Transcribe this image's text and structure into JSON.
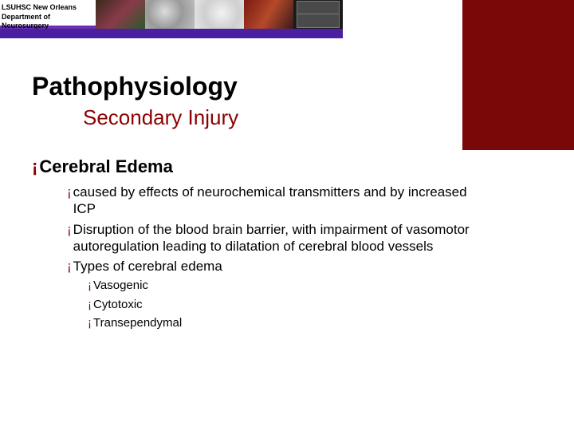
{
  "header": {
    "org_line1": "LSUHSC New Orleans",
    "org_line2": "Department of Neurosurgery",
    "purple_bar_color": "#4a1fa0",
    "maroon_box_color": "#7a0808"
  },
  "title": "Pathophysiology",
  "subtitle": "Secondary Injury",
  "bullet_glyph": "¡",
  "bullet_color": "#8b0000",
  "subtitle_color": "#8b0000",
  "fonts": {
    "title_size_pt": 32,
    "subtitle_size_pt": 26,
    "lvl1_size_pt": 22,
    "lvl2_size_pt": 17,
    "lvl3_size_pt": 15,
    "family": "Arial"
  },
  "content": {
    "heading": "Cerebral Edema",
    "points": [
      "caused by effects of neurochemical transmitters and by increased ICP",
      "Disruption of the blood brain barrier, with impairment of vasomotor autoregulation leading to dilatation of cerebral blood vessels",
      "Types of cerebral edema"
    ],
    "subpoints": [
      "Vasogenic",
      "Cytotoxic",
      "Transependymal"
    ]
  },
  "background_color": "#ffffff"
}
